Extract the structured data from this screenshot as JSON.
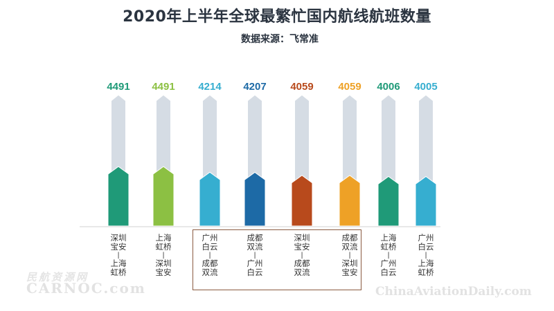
{
  "title": "2020年上半年全球最繁忙国内航线航班数量",
  "subtitle": "数据来源：飞常准",
  "watermarks": {
    "left_cn": "民航资源网",
    "left_en": "CARNOC.com",
    "right": "ChinaAviationDaily.com"
  },
  "chart_data": {
    "type": "bar",
    "title": "2020年上半年全球最繁忙国内航线航班数量",
    "subtitle": "数据来源：飞常准",
    "xlabel": "",
    "ylabel": "",
    "grid": false,
    "legend": "none",
    "categories": [
      {
        "from": [
          "深圳",
          "宝安"
        ],
        "to": [
          "上海",
          "虹桥"
        ]
      },
      {
        "from": [
          "上海",
          "虹桥"
        ],
        "to": [
          "深圳",
          "宝安"
        ]
      },
      {
        "from": [
          "广州",
          "白云"
        ],
        "to": [
          "成都",
          "双流"
        ]
      },
      {
        "from": [
          "成都",
          "双流"
        ],
        "to": [
          "广州",
          "白云"
        ]
      },
      {
        "from": [
          "深圳",
          "宝安"
        ],
        "to": [
          "成都",
          "双流"
        ]
      },
      {
        "from": [
          "成都",
          "双流"
        ],
        "to": [
          "深圳",
          "宝安"
        ]
      },
      {
        "from": [
          "上海",
          "虹桥"
        ],
        "to": [
          "广州",
          "白云"
        ]
      },
      {
        "from": [
          "广州",
          "白云"
        ],
        "to": [
          "上海",
          "虹桥"
        ]
      }
    ],
    "category_labels": [
      "深圳宝安-上海虹桥",
      "上海虹桥-深圳宝安",
      "广州白云-成都双流",
      "成都双流-广州白云",
      "深圳宝安-成都双流",
      "成都双流-深圳宝安",
      "上海虹桥-广州白云",
      "广州白云-上海虹桥"
    ],
    "values": [
      4491,
      4491,
      4214,
      4207,
      4059,
      4059,
      4006,
      4005
    ],
    "colors": [
      "#1f9a78",
      "#8cc043",
      "#36aed0",
      "#1d6aa6",
      "#b84a1c",
      "#eea126",
      "#1f9a78",
      "#36aed0"
    ],
    "track_color": "#d5dce4",
    "highlighted_categories": [
      2,
      3,
      4,
      5
    ]
  }
}
